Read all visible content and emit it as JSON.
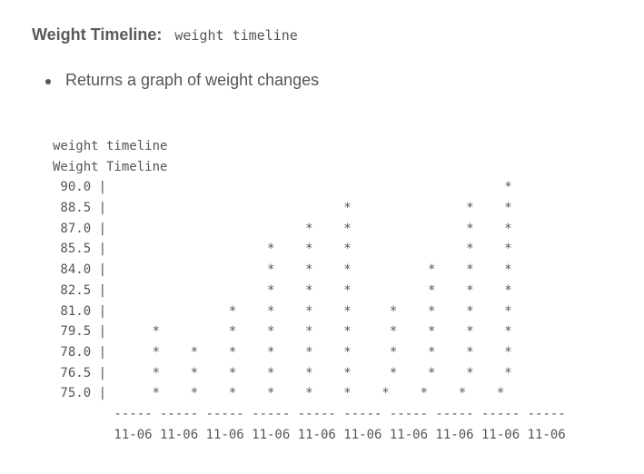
{
  "heading": {
    "label": "Weight Timeline:",
    "command": "weight timeline"
  },
  "bullets": [
    "Returns a graph of weight changes"
  ],
  "terminal": {
    "lines": [
      "weight timeline",
      "Weight Timeline",
      " 90.0 |                                                    *",
      " 88.5 |                               *               *    *",
      " 87.0 |                          *    *               *    *",
      " 85.5 |                     *    *    *               *    *",
      " 84.0 |                     *    *    *          *    *    *",
      " 82.5 |                     *    *    *          *    *    *",
      " 81.0 |                *    *    *    *     *    *    *    *",
      " 79.5 |      *         *    *    *    *     *    *    *    *",
      " 78.0 |      *    *    *    *    *    *     *    *    *    *",
      " 76.5 |      *    *    *    *    *    *     *    *    *    *",
      " 75.0 |      *    *    *    *    *    *    *    *    *    *",
      "        ----- ----- ----- ----- ----- ----- ----- ----- ----- -----",
      "        11-06 11-06 11-06 11-06 11-06 11-06 11-06 11-06 11-06 11-06"
    ]
  }
}
